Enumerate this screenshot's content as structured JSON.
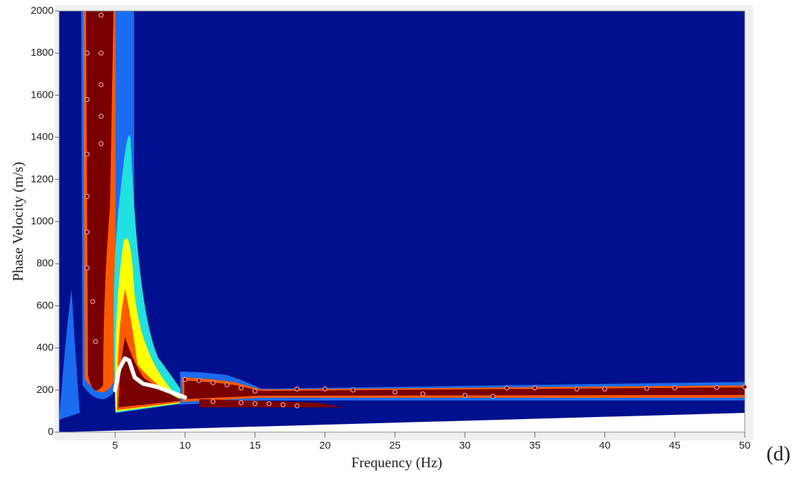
{
  "chart_data": {
    "type": "scatter",
    "x_label": "Frequency (Hz)",
    "y_label": "Phase Velocity  (m/s)",
    "annotation": "(d)",
    "xlim": [
      1,
      50
    ],
    "ylim": [
      0,
      2000
    ],
    "xticks": [
      5,
      10,
      15,
      20,
      25,
      30,
      35,
      40,
      45,
      50
    ],
    "yticks": [
      0,
      200,
      400,
      600,
      800,
      1000,
      1200,
      1400,
      1600,
      1800,
      2000
    ],
    "series": [
      {
        "color": "#e8a0a8",
        "marker": "circle",
        "x": [
          3,
          3,
          3,
          3,
          3,
          3,
          3.4,
          3.6,
          4,
          4,
          4,
          4,
          4,
          10,
          11,
          12,
          13,
          14,
          15,
          12,
          14,
          15,
          16,
          17,
          18,
          18,
          20,
          22,
          25,
          27,
          30,
          32,
          33,
          35,
          38,
          40,
          43,
          45,
          48,
          50
        ],
        "values": [
          1800,
          1580,
          1320,
          1120,
          950,
          780,
          620,
          430,
          1980,
          1800,
          1650,
          1500,
          1370,
          250,
          245,
          235,
          225,
          210,
          195,
          145,
          140,
          135,
          135,
          130,
          125,
          205,
          205,
          200,
          190,
          182,
          175,
          170,
          210,
          210,
          205,
          205,
          208,
          210,
          212,
          215
        ]
      },
      {
        "color": "#ffffff",
        "marker": "line",
        "x": [
          5,
          5.3,
          5.7,
          6,
          6.4,
          7,
          8,
          9,
          10
        ],
        "values": [
          200,
          300,
          350,
          340,
          260,
          230,
          215,
          190,
          165
        ]
      }
    ]
  }
}
